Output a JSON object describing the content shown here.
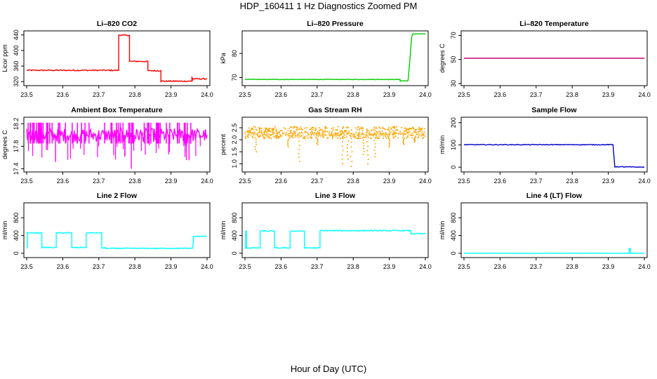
{
  "title": "HDP_160411  1 Hz Diagnostics Zoomed PM",
  "xlabel": "Hour of Day (UTC)",
  "chart_data": [
    {
      "type": "line",
      "title": "Li–820 CO2",
      "ylabel": "Licor ppm",
      "color": "#ff0000",
      "xlim": [
        23.5,
        24.0
      ],
      "ylim": [
        315,
        445
      ],
      "xticks": [
        23.5,
        23.6,
        23.7,
        23.8,
        23.9,
        24.0
      ],
      "xtick_labels": [
        "23.5",
        "23.6",
        "23.7",
        "23.8",
        "23.9",
        "24.0"
      ],
      "yticks": [
        320,
        360,
        400,
        440
      ],
      "ytick_labels": [
        "320",
        "360",
        "400",
        "440"
      ],
      "x": [
        23.5,
        23.755,
        23.755,
        23.765,
        23.765,
        23.785,
        23.785,
        23.81,
        23.81,
        23.836,
        23.836,
        23.872,
        23.872,
        23.912,
        23.912,
        23.922,
        23.922,
        23.958,
        23.958,
        23.96,
        23.96,
        24.0
      ],
      "y": [
        349,
        349,
        440,
        440,
        439,
        439,
        372,
        372,
        372,
        372,
        348,
        348,
        321,
        321,
        321,
        321,
        321,
        321,
        333,
        322,
        327,
        327
      ],
      "noise": 1.5
    },
    {
      "type": "line",
      "title": "Li–820 Pressure",
      "ylabel": "kPa",
      "color": "#00cc00",
      "xlim": [
        23.5,
        24.0
      ],
      "ylim": [
        67.5,
        88.5
      ],
      "xticks": [
        23.5,
        23.6,
        23.7,
        23.8,
        23.9,
        24.0
      ],
      "xtick_labels": [
        "23.5",
        "23.6",
        "23.7",
        "23.8",
        "23.9",
        "24.0"
      ],
      "yticks": [
        70,
        80
      ],
      "ytick_labels": [
        "70",
        "80"
      ],
      "x": [
        23.5,
        23.93,
        23.93,
        23.952,
        23.958,
        23.962,
        23.965,
        24.0
      ],
      "y": [
        69.2,
        69.2,
        68.6,
        68.6,
        79,
        87,
        88.1,
        88.1
      ],
      "noise": 0.1
    },
    {
      "type": "line",
      "title": "Li–820 Temperature",
      "ylabel": "degrees C",
      "color": "#cc0077",
      "xlim": [
        23.5,
        24.0
      ],
      "ylim": [
        30,
        72
      ],
      "xticks": [
        23.5,
        23.6,
        23.7,
        23.8,
        23.9,
        24.0
      ],
      "xtick_labels": [
        "23.5",
        "23.6",
        "23.7",
        "23.8",
        "23.9",
        "24.0"
      ],
      "yticks": [
        30,
        50,
        70
      ],
      "ytick_labels": [
        "30",
        "50",
        "70"
      ],
      "x": [
        23.5,
        24.0
      ],
      "y": [
        51,
        51
      ],
      "noise": 0
    },
    {
      "type": "line",
      "title": "Ambient Box Temperature",
      "ylabel": "degrees C",
      "color": "#ff00ff",
      "xlim": [
        23.5,
        24.0
      ],
      "ylim": [
        17.38,
        18.28
      ],
      "xticks": [
        23.5,
        23.6,
        23.7,
        23.8,
        23.9,
        24.0
      ],
      "xtick_labels": [
        "23.5",
        "23.6",
        "23.7",
        "23.8",
        "23.9",
        "24.0"
      ],
      "yticks": [
        17.4,
        17.8,
        18.2
      ],
      "ytick_labels": [
        "17.4",
        "17.8",
        "18.2"
      ],
      "x": [
        23.5,
        24.0
      ],
      "y": [
        18.0,
        18.0
      ],
      "noise": 0.12
    },
    {
      "type": "scatter",
      "title": "Gas Stream RH",
      "ylabel": "percent",
      "color": "#ffa500",
      "xlim": [
        23.5,
        24.0
      ],
      "ylim": [
        0.75,
        2.85
      ],
      "xticks": [
        23.5,
        23.6,
        23.7,
        23.8,
        23.9,
        24.0
      ],
      "xtick_labels": [
        "23.5",
        "23.6",
        "23.7",
        "23.8",
        "23.9",
        "24.0"
      ],
      "yticks": [
        1.0,
        1.5,
        2.0,
        2.5
      ],
      "ytick_labels": [
        "1.0",
        "1.5",
        "2.0",
        "2.5"
      ],
      "x": [
        23.5,
        23.6,
        23.7,
        23.8,
        23.9,
        24.0
      ],
      "y": [
        2.25,
        2.2,
        2.25,
        2.2,
        2.25,
        2.3
      ],
      "noise": 0.12
    },
    {
      "type": "line",
      "title": "Sample Flow",
      "ylabel": "ml/min",
      "color": "#0000cc",
      "xlim": [
        23.5,
        24.0
      ],
      "ylim": [
        -12,
        215
      ],
      "xticks": [
        23.5,
        23.6,
        23.7,
        23.8,
        23.9,
        24.0
      ],
      "xtick_labels": [
        "23.5",
        "23.6",
        "23.7",
        "23.8",
        "23.9",
        "24.0"
      ],
      "yticks": [
        0,
        100,
        200
      ],
      "ytick_labels": [
        "0",
        "100",
        "200"
      ],
      "x": [
        23.5,
        23.913,
        23.913,
        23.918,
        23.918,
        24.0
      ],
      "y": [
        101,
        101,
        101,
        2,
        2,
        0
      ],
      "noise": 1.5
    },
    {
      "type": "line",
      "title": "Line 2 Flow",
      "ylabel": "ml/min",
      "color": "#00ffff",
      "xlim": [
        23.5,
        24.0
      ],
      "ylim": [
        -50,
        1090
      ],
      "xticks": [
        23.5,
        23.6,
        23.7,
        23.8,
        23.9,
        24.0
      ],
      "xtick_labels": [
        "23.5",
        "23.6",
        "23.7",
        "23.8",
        "23.9",
        "24.0"
      ],
      "yticks": [
        0,
        400,
        800
      ],
      "ytick_labels": [
        "0",
        "400",
        "800"
      ],
      "x": [
        23.5,
        23.502,
        23.502,
        23.542,
        23.542,
        23.582,
        23.582,
        23.625,
        23.625,
        23.665,
        23.665,
        23.708,
        23.708,
        23.72,
        23.72,
        23.96,
        23.96,
        23.962,
        23.962,
        24.0
      ],
      "y": [
        120,
        120,
        460,
        460,
        130,
        130,
        460,
        460,
        130,
        130,
        460,
        460,
        120,
        120,
        110,
        110,
        110,
        300,
        380,
        380
      ],
      "noise": 10
    },
    {
      "type": "line",
      "title": "Line 3 Flow",
      "ylabel": "ml/min",
      "color": "#00ffff",
      "xlim": [
        23.5,
        24.0
      ],
      "ylim": [
        -50,
        1090
      ],
      "xticks": [
        23.5,
        23.6,
        23.7,
        23.8,
        23.9,
        24.0
      ],
      "xtick_labels": [
        "23.5",
        "23.6",
        "23.7",
        "23.8",
        "23.9",
        "24.0"
      ],
      "yticks": [
        0,
        400,
        800
      ],
      "ytick_labels": [
        "0",
        "400",
        "800"
      ],
      "x": [
        23.5,
        23.502,
        23.502,
        23.504,
        23.504,
        23.542,
        23.542,
        23.582,
        23.582,
        23.625,
        23.625,
        23.665,
        23.665,
        23.708,
        23.708,
        23.96,
        23.96,
        24.0
      ],
      "y": [
        120,
        120,
        500,
        500,
        120,
        120,
        500,
        500,
        120,
        120,
        500,
        500,
        120,
        120,
        510,
        510,
        440,
        440
      ],
      "noise": 12
    },
    {
      "type": "line",
      "title": "Line 4 (LT) Flow",
      "ylabel": "ml/min",
      "color": "#00ffff",
      "xlim": [
        23.5,
        24.0
      ],
      "ylim": [
        -50,
        1090
      ],
      "xticks": [
        23.5,
        23.6,
        23.7,
        23.8,
        23.9,
        24.0
      ],
      "xtick_labels": [
        "23.5",
        "23.6",
        "23.7",
        "23.8",
        "23.9",
        "24.0"
      ],
      "yticks": [
        0,
        400,
        800
      ],
      "ytick_labels": [
        "0",
        "400",
        "800"
      ],
      "x": [
        23.5,
        23.958,
        23.958,
        23.961,
        23.961,
        24.0
      ],
      "y": [
        0,
        0,
        110,
        110,
        0,
        0
      ],
      "noise": 2
    }
  ]
}
